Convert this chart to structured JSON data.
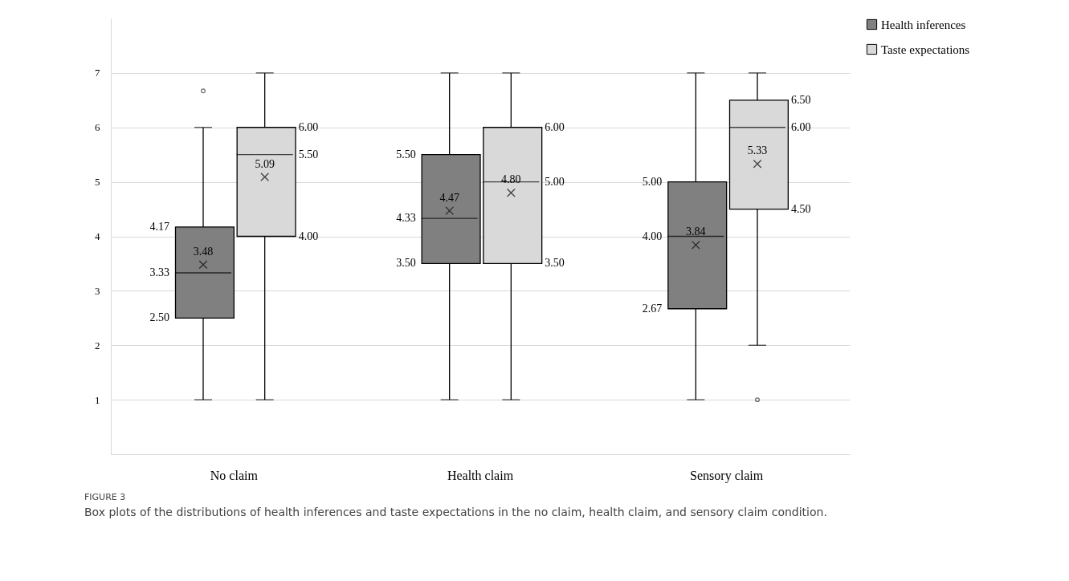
{
  "chart_data": {
    "type": "box",
    "categories": [
      "No claim",
      "Health  claim",
      "Sensory claim"
    ],
    "series": [
      {
        "name": "Health inferences",
        "color": "#808080",
        "boxes": [
          {
            "low": 1,
            "q1": 2.5,
            "median": 3.33,
            "q3": 4.17,
            "high": 6,
            "mean": 3.48,
            "outliers": [
              6.67
            ]
          },
          {
            "low": 1,
            "q1": 3.5,
            "median": 4.33,
            "q3": 5.5,
            "high": 7,
            "mean": 4.47
          },
          {
            "low": 1,
            "q1": 2.67,
            "median": 4,
            "q3": 5,
            "high": 7,
            "mean": 3.84
          }
        ]
      },
      {
        "name": "Taste expectations",
        "color": "#d9d9d9",
        "boxes": [
          {
            "low": 1,
            "q1": 4,
            "median": 5.5,
            "q3": 6,
            "high": 7,
            "mean": 5.09
          },
          {
            "low": 1,
            "q1": 3.5,
            "median": 5,
            "q3": 6,
            "high": 7,
            "mean": 4.8
          },
          {
            "low": 2,
            "q1": 4.5,
            "median": 6,
            "q3": 6.5,
            "high": 7,
            "mean": 5.33,
            "outliers": [
              1
            ]
          }
        ]
      }
    ],
    "ylim": [
      0,
      8
    ],
    "yticks": [
      1,
      2,
      3,
      4,
      5,
      6,
      7
    ],
    "grid": "y",
    "legend": "right",
    "annotations": [
      "4.17",
      "3.33",
      "2.50",
      "3.48",
      "6.00",
      "5.50",
      "4.00",
      "5.09",
      "5.50",
      "4.33",
      "3.50",
      "4.47",
      "6.00",
      "5.00",
      "3.50",
      "4.80",
      "5.00",
      "4.00",
      "2.67",
      "3.84",
      "6.50",
      "6.00",
      "4.50",
      "5.33",
      "FIGURE 3",
      "Box plots of the distributions of health inferences and taste expectations in the no claim, health claim, and sensory claim condition."
    ]
  }
}
